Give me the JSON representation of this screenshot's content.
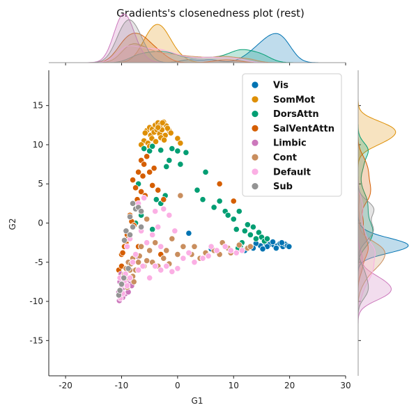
{
  "chart_data": {
    "type": "scatter",
    "title": "Gradients's closenedness plot (rest)",
    "xlabel": "G1",
    "ylabel": "G2",
    "xlim": [
      -23,
      30
    ],
    "ylim": [
      -19.5,
      19.5
    ],
    "xticks": [
      -20,
      -10,
      0,
      10,
      20,
      30
    ],
    "yticks": [
      -15,
      -10,
      -5,
      0,
      5,
      10,
      15
    ],
    "grid": false,
    "legend_position": "top-right",
    "marginals": "kde (top: G1 density per network, right: G2 density per network)",
    "series": [
      {
        "name": "Vis",
        "color": "#0173b2",
        "points": [
          [
            15.8,
            -2.6
          ],
          [
            16.5,
            -2.7
          ],
          [
            17.2,
            -2.8
          ],
          [
            17.8,
            -2.9
          ],
          [
            18.3,
            -2.6
          ],
          [
            18.8,
            -3.0
          ],
          [
            19.2,
            -2.7
          ],
          [
            19.6,
            -2.9
          ],
          [
            17.0,
            -2.4
          ],
          [
            16.0,
            -3.0
          ],
          [
            14.8,
            -2.9
          ],
          [
            18.6,
            -2.5
          ],
          [
            19.9,
            -3.0
          ],
          [
            15.2,
            -3.3
          ],
          [
            14.0,
            -2.6
          ],
          [
            12.0,
            -3.5
          ],
          [
            6.0,
            -3.3
          ],
          [
            2.0,
            -1.3
          ],
          [
            13.5,
            -3.2
          ],
          [
            17.6,
            -3.2
          ]
        ]
      },
      {
        "name": "SomMot",
        "color": "#de8f05",
        "points": [
          [
            -5.5,
            11.8
          ],
          [
            -5.0,
            12.2
          ],
          [
            -4.5,
            12.0
          ],
          [
            -4.0,
            12.5
          ],
          [
            -3.5,
            12.8
          ],
          [
            -3.0,
            12.6
          ],
          [
            -2.5,
            12.9
          ],
          [
            -2.0,
            12.4
          ],
          [
            -1.5,
            11.8
          ],
          [
            -4.8,
            11.2
          ],
          [
            -4.2,
            11.6
          ],
          [
            -3.7,
            11.9
          ],
          [
            -3.2,
            11.4
          ],
          [
            -2.8,
            11.9
          ],
          [
            -2.2,
            11.2
          ],
          [
            -1.8,
            12.1
          ],
          [
            -1.2,
            11.5
          ],
          [
            -5.8,
            11.5
          ],
          [
            -6.0,
            10.5
          ],
          [
            -5.3,
            10.2
          ],
          [
            -4.6,
            10.8
          ],
          [
            -3.9,
            10.4
          ],
          [
            -3.0,
            10.9
          ],
          [
            -2.4,
            10.6
          ],
          [
            0.0,
            10.8
          ],
          [
            0.5,
            10.2
          ],
          [
            -6.5,
            10.0
          ],
          [
            -5.0,
            9.8
          ],
          [
            -3.5,
            12.2
          ],
          [
            -2.7,
            12.8
          ]
        ]
      },
      {
        "name": "DorsAttn",
        "color": "#029e73",
        "points": [
          [
            -6.0,
            9.5
          ],
          [
            -5.0,
            9.2
          ],
          [
            -4.5,
            9.8
          ],
          [
            -3.0,
            9.3
          ],
          [
            -2.0,
            7.2
          ],
          [
            -1.0,
            9.5
          ],
          [
            0.0,
            9.2
          ],
          [
            1.5,
            9.0
          ],
          [
            5.0,
            6.5
          ],
          [
            3.5,
            4.2
          ],
          [
            4.5,
            3.0
          ],
          [
            6.5,
            2.0
          ],
          [
            7.5,
            2.8
          ],
          [
            8.5,
            1.5
          ],
          [
            9.0,
            1.0
          ],
          [
            10.0,
            0.5
          ],
          [
            10.5,
            -0.8
          ],
          [
            11.0,
            1.5
          ],
          [
            12.0,
            -1.0
          ],
          [
            12.5,
            -0.2
          ],
          [
            13.0,
            -1.5
          ],
          [
            13.5,
            -0.5
          ],
          [
            14.0,
            -2.0
          ],
          [
            14.5,
            -1.2
          ],
          [
            15.0,
            -1.8
          ],
          [
            15.5,
            -2.3
          ],
          [
            16.0,
            -2.0
          ],
          [
            11.5,
            -2.5
          ],
          [
            11.2,
            -3.0
          ],
          [
            10.8,
            -3.2
          ],
          [
            -8.0,
            -0.5
          ],
          [
            -7.5,
            0.0
          ],
          [
            -6.5,
            1.0
          ],
          [
            -4.5,
            -0.8
          ],
          [
            -3.8,
            3.0
          ],
          [
            -3.0,
            2.5
          ],
          [
            -2.2,
            3.5
          ],
          [
            -1.5,
            8.0
          ],
          [
            0.5,
            7.5
          ],
          [
            -7.0,
            5.0
          ]
        ]
      },
      {
        "name": "SalVentAttn",
        "color": "#d55e00",
        "points": [
          [
            -6.5,
            8.0
          ],
          [
            -6.0,
            7.5
          ],
          [
            -5.5,
            8.5
          ],
          [
            -7.0,
            6.5
          ],
          [
            -6.2,
            6.0
          ],
          [
            -5.0,
            6.5
          ],
          [
            -4.2,
            7.0
          ],
          [
            -8.0,
            5.5
          ],
          [
            -7.5,
            4.5
          ],
          [
            -4.5,
            4.8
          ],
          [
            -3.5,
            4.2
          ],
          [
            -6.5,
            4.0
          ],
          [
            -7.2,
            3.0
          ],
          [
            -5.8,
            3.5
          ],
          [
            -2.5,
            3.0
          ],
          [
            -8.5,
            1.0
          ],
          [
            -8.2,
            0.2
          ],
          [
            -7.8,
            -0.3
          ],
          [
            -9.0,
            -1.5
          ],
          [
            -9.2,
            -2.5
          ],
          [
            -8.8,
            -2.0
          ],
          [
            -9.5,
            -3.0
          ],
          [
            -10.0,
            -4.0
          ],
          [
            -9.8,
            -3.8
          ],
          [
            -10.5,
            -6.0
          ],
          [
            -10.0,
            -5.5
          ],
          [
            -7.0,
            -3.0
          ],
          [
            7.5,
            5.0
          ],
          [
            10.0,
            2.8
          ],
          [
            -3.0,
            -4.0
          ]
        ]
      },
      {
        "name": "Limbic",
        "color": "#cc78bc",
        "points": [
          [
            -10.5,
            -8.8
          ],
          [
            -10.2,
            -9.2
          ],
          [
            -9.8,
            -9.5
          ],
          [
            -10.0,
            -8.5
          ],
          [
            -10.3,
            -7.5
          ],
          [
            -9.5,
            -8.2
          ],
          [
            -9.3,
            -9.0
          ],
          [
            -8.8,
            -8.8
          ],
          [
            -8.5,
            -7.8
          ],
          [
            -9.0,
            -7.2
          ],
          [
            -10.1,
            -6.5
          ],
          [
            -9.7,
            -6.8
          ],
          [
            -10.4,
            -9.9
          ],
          [
            -8.2,
            -8.0
          ],
          [
            -7.0,
            -4.3
          ]
        ]
      },
      {
        "name": "Cont",
        "color": "#c98e5e",
        "points": [
          [
            -9.5,
            -6.5
          ],
          [
            -9.0,
            -7.0
          ],
          [
            -8.5,
            -6.0
          ],
          [
            -8.0,
            -6.8
          ],
          [
            -7.5,
            -6.0
          ],
          [
            -8.8,
            -5.0
          ],
          [
            -8.0,
            -4.5
          ],
          [
            -9.2,
            -5.8
          ],
          [
            -7.0,
            -5.0
          ],
          [
            -6.0,
            -5.5
          ],
          [
            -5.5,
            -4.8
          ],
          [
            -4.5,
            -5.0
          ],
          [
            -3.5,
            -5.5
          ],
          [
            -2.5,
            -4.5
          ],
          [
            -1.5,
            -5.2
          ],
          [
            0.0,
            -4.0
          ],
          [
            1.0,
            -3.0
          ],
          [
            2.5,
            -4.0
          ],
          [
            3.0,
            -3.0
          ],
          [
            4.0,
            -4.5
          ],
          [
            5.0,
            -3.8
          ],
          [
            6.5,
            -3.5
          ],
          [
            7.5,
            -4.0
          ],
          [
            8.0,
            -2.5
          ],
          [
            9.0,
            -3.2
          ],
          [
            9.5,
            -3.8
          ],
          [
            11.0,
            -2.8
          ],
          [
            12.5,
            -3.2
          ],
          [
            13.0,
            -3.0
          ],
          [
            -5.0,
            -3.5
          ],
          [
            -6.5,
            -3.0
          ],
          [
            -4.0,
            -2.5
          ],
          [
            -2.0,
            -3.5
          ],
          [
            -1.0,
            -2.0
          ],
          [
            0.5,
            3.5
          ],
          [
            -5.5,
            0.5
          ],
          [
            -9.0,
            -8.2
          ],
          [
            -7.8,
            -7.5
          ],
          [
            -8.3,
            -5.2
          ],
          [
            -6.8,
            -4.2
          ]
        ]
      },
      {
        "name": "Default",
        "color": "#fbafe4",
        "points": [
          [
            -10.2,
            -9.6
          ],
          [
            -9.8,
            -9.0
          ],
          [
            -10.0,
            -8.0
          ],
          [
            -9.5,
            -7.5
          ],
          [
            -9.0,
            -8.0
          ],
          [
            -8.5,
            -7.0
          ],
          [
            -9.3,
            -6.5
          ],
          [
            -10.3,
            -7.0
          ],
          [
            -8.0,
            -5.0
          ],
          [
            -7.0,
            -6.0
          ],
          [
            -5.0,
            -7.0
          ],
          [
            -4.0,
            -5.5
          ],
          [
            -3.0,
            -6.0
          ],
          [
            -2.0,
            -5.5
          ],
          [
            -1.0,
            -6.2
          ],
          [
            0.0,
            -5.8
          ],
          [
            1.0,
            -4.5
          ],
          [
            2.0,
            -3.8
          ],
          [
            3.0,
            -5.0
          ],
          [
            4.5,
            -4.5
          ],
          [
            5.5,
            -4.2
          ],
          [
            6.0,
            -3.0
          ],
          [
            7.0,
            -3.5
          ],
          [
            8.5,
            -3.0
          ],
          [
            9.5,
            -3.5
          ],
          [
            10.5,
            -3.8
          ],
          [
            11.5,
            -3.5
          ],
          [
            -6.5,
            -1.0
          ],
          [
            -5.5,
            -2.5
          ],
          [
            -4.5,
            -1.5
          ],
          [
            -3.5,
            -0.5
          ],
          [
            -2.5,
            1.8
          ],
          [
            -1.5,
            1.0
          ],
          [
            -0.5,
            -1.0
          ],
          [
            -7.0,
            2.5
          ],
          [
            -6.0,
            3.2
          ],
          [
            -4.0,
            1.5
          ],
          [
            -8.5,
            -2.0
          ],
          [
            -9.0,
            -3.0
          ],
          [
            -7.5,
            -4.0
          ],
          [
            -3.0,
            -3.0
          ],
          [
            -6.2,
            -5.5
          ]
        ]
      },
      {
        "name": "Sub",
        "color": "#949494",
        "points": [
          [
            -10.5,
            -9.2
          ],
          [
            -10.3,
            -8.6
          ],
          [
            -10.0,
            -7.8
          ],
          [
            -9.6,
            -7.0
          ],
          [
            -8.8,
            -5.8
          ],
          [
            -8.5,
            0.8
          ],
          [
            -8.0,
            2.5
          ],
          [
            -7.5,
            1.8
          ],
          [
            -7.0,
            2.0
          ],
          [
            -6.5,
            1.5
          ],
          [
            -9.2,
            -1.0
          ],
          [
            -8.5,
            -1.5
          ],
          [
            -8.0,
            -0.5
          ],
          [
            -6.5,
            -0.5
          ],
          [
            -9.5,
            -2.2
          ]
        ]
      }
    ]
  }
}
